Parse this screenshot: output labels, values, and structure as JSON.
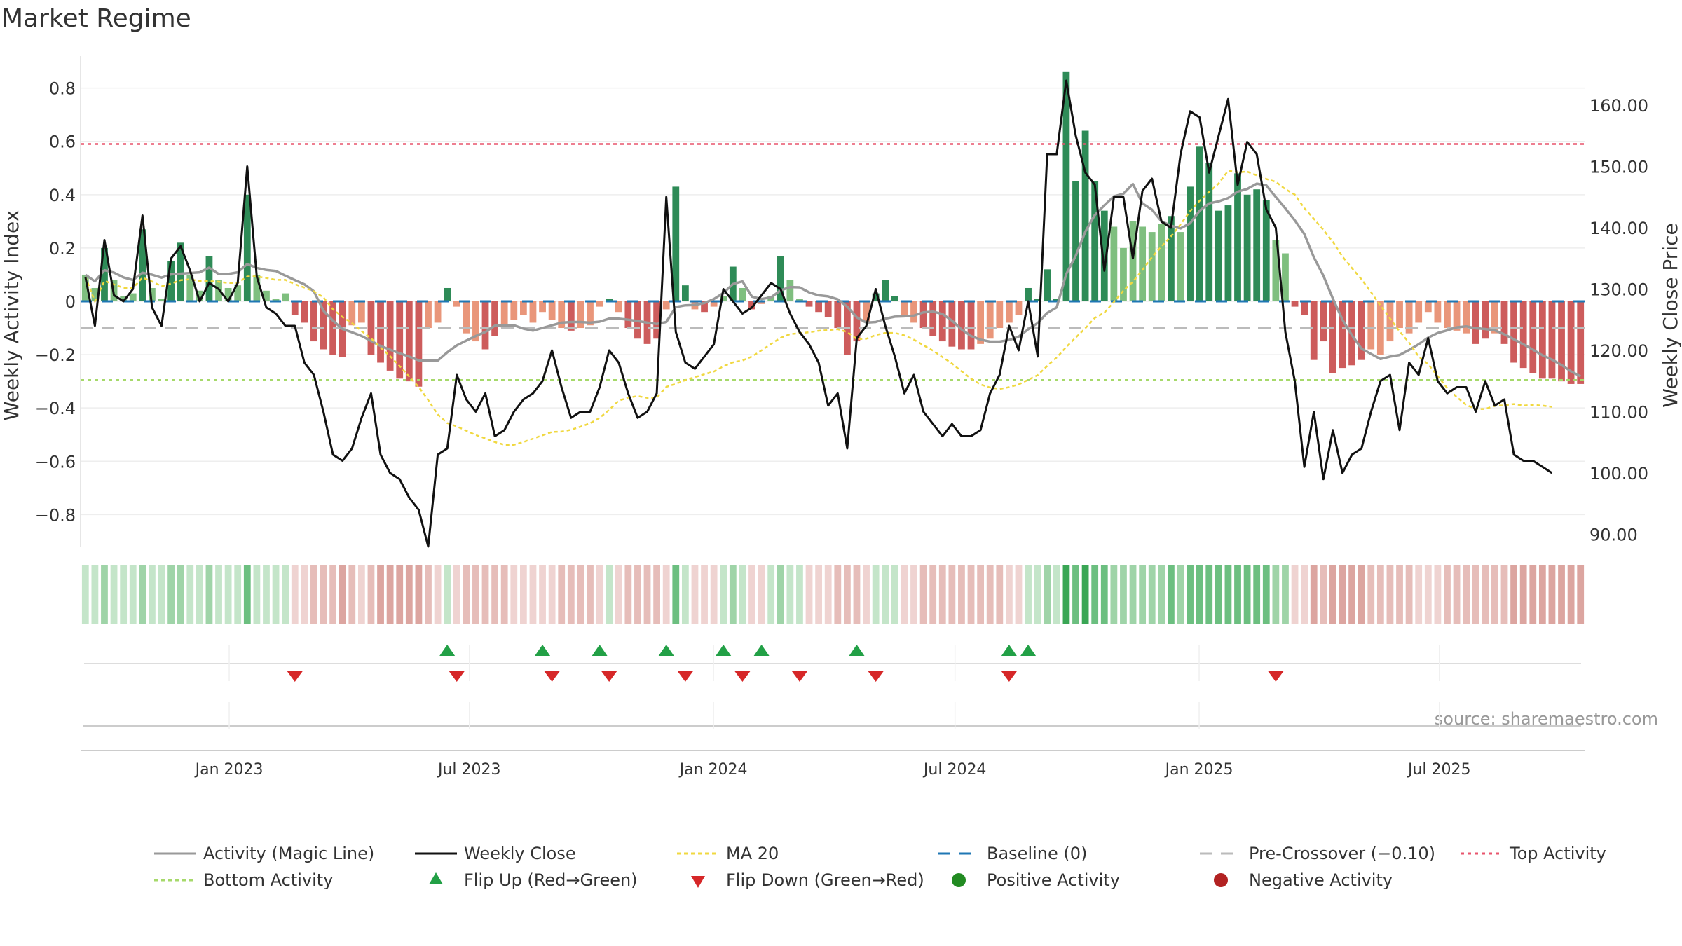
{
  "chart_data": {
    "type": "bar",
    "title": "Market Regime",
    "ylabel_left": "Weekly Activity Index",
    "ylabel_right": "Weekly Close Price",
    "left_ylim": [
      -0.92,
      0.92
    ],
    "right_ylim": [
      88,
      168
    ],
    "left_ticks": [
      0.8,
      0.6,
      0.4,
      0.2,
      0,
      -0.2,
      -0.4,
      -0.6,
      -0.8
    ],
    "left_tick_labels": [
      "0.8",
      "0.6",
      "0.4",
      "0.2",
      "0",
      "−0.2",
      "−0.4",
      "−0.6",
      "−0.8"
    ],
    "right_ticks": [
      160,
      150,
      140,
      130,
      120,
      110,
      100,
      90
    ],
    "right_tick_labels": [
      "160.00",
      "150.00",
      "140.00",
      "130.00",
      "120.00",
      "110.00",
      "100.00",
      "90.00"
    ],
    "x_start": "2022-09-11",
    "x_end": "2025-10-19",
    "date_ticks": [
      {
        "date": "2023-01-01",
        "label": "Jan 2023"
      },
      {
        "date": "2023-07-01",
        "label": "Jul 2023"
      },
      {
        "date": "2024-01-01",
        "label": "Jan 2024"
      },
      {
        "date": "2024-07-01",
        "label": "Jul 2024"
      },
      {
        "date": "2025-01-01",
        "label": "Jan 2025"
      },
      {
        "date": "2025-07-01",
        "label": "Jul 2025"
      }
    ],
    "reference_lines": {
      "baseline": 0,
      "pre_crossover": -0.1,
      "top_activity": 0.59,
      "bottom_activity": -0.295
    },
    "weeks": 158,
    "activity_keyframes": [
      [
        0,
        0.1
      ],
      [
        1,
        0.05
      ],
      [
        2,
        0.2
      ],
      [
        3,
        0.08
      ],
      [
        4,
        0.02
      ],
      [
        5,
        0.03
      ],
      [
        6,
        0.27
      ],
      [
        7,
        0.05
      ],
      [
        8,
        0.01
      ],
      [
        9,
        0.15
      ],
      [
        10,
        0.22
      ],
      [
        11,
        0.1
      ],
      [
        12,
        0.04
      ],
      [
        13,
        0.17
      ],
      [
        14,
        0.08
      ],
      [
        15,
        0.05
      ],
      [
        16,
        0.06
      ],
      [
        17,
        0.4
      ],
      [
        18,
        0.1
      ],
      [
        19,
        0.04
      ],
      [
        20,
        0.01
      ],
      [
        21,
        0.03
      ],
      [
        22,
        -0.05
      ],
      [
        23,
        -0.08
      ],
      [
        24,
        -0.15
      ],
      [
        25,
        -0.18
      ],
      [
        26,
        -0.2
      ],
      [
        27,
        -0.21
      ],
      [
        28,
        -0.09
      ],
      [
        29,
        -0.08
      ],
      [
        30,
        -0.2
      ],
      [
        31,
        -0.23
      ],
      [
        32,
        -0.26
      ],
      [
        33,
        -0.29
      ],
      [
        34,
        -0.3
      ],
      [
        35,
        -0.32
      ],
      [
        36,
        -0.1
      ],
      [
        37,
        -0.08
      ],
      [
        38,
        0.05
      ],
      [
        39,
        -0.02
      ],
      [
        40,
        -0.12
      ],
      [
        41,
        -0.15
      ],
      [
        42,
        -0.18
      ],
      [
        43,
        -0.13
      ],
      [
        44,
        -0.1
      ],
      [
        45,
        -0.07
      ],
      [
        46,
        -0.05
      ],
      [
        47,
        -0.08
      ],
      [
        48,
        -0.04
      ],
      [
        49,
        -0.07
      ],
      [
        50,
        -0.1
      ],
      [
        51,
        -0.11
      ],
      [
        52,
        -0.1
      ],
      [
        53,
        -0.09
      ],
      [
        54,
        -0.02
      ],
      [
        55,
        0.01
      ],
      [
        56,
        -0.04
      ],
      [
        57,
        -0.1
      ],
      [
        58,
        -0.14
      ],
      [
        59,
        -0.16
      ],
      [
        60,
        -0.14
      ],
      [
        61,
        -0.03
      ],
      [
        62,
        0.43
      ],
      [
        63,
        0.06
      ],
      [
        64,
        -0.03
      ],
      [
        65,
        -0.04
      ],
      [
        66,
        -0.02
      ],
      [
        67,
        0.02
      ],
      [
        68,
        0.13
      ],
      [
        69,
        0.05
      ],
      [
        70,
        -0.03
      ],
      [
        71,
        -0.01
      ],
      [
        72,
        0.02
      ],
      [
        73,
        0.17
      ],
      [
        74,
        0.08
      ],
      [
        75,
        0.01
      ],
      [
        76,
        -0.02
      ],
      [
        77,
        -0.04
      ],
      [
        78,
        -0.06
      ],
      [
        79,
        -0.1
      ],
      [
        80,
        -0.2
      ],
      [
        81,
        -0.15
      ],
      [
        82,
        -0.08
      ],
      [
        83,
        0.03
      ],
      [
        84,
        0.08
      ],
      [
        85,
        0.02
      ],
      [
        86,
        -0.05
      ],
      [
        87,
        -0.08
      ],
      [
        88,
        -0.1
      ],
      [
        89,
        -0.13
      ],
      [
        90,
        -0.15
      ],
      [
        91,
        -0.17
      ],
      [
        92,
        -0.18
      ],
      [
        93,
        -0.18
      ],
      [
        94,
        -0.16
      ],
      [
        95,
        -0.14
      ],
      [
        96,
        -0.1
      ],
      [
        97,
        -0.08
      ],
      [
        98,
        -0.05
      ],
      [
        99,
        0.05
      ],
      [
        100,
        0.01
      ],
      [
        101,
        0.12
      ],
      [
        102,
        0.01
      ],
      [
        103,
        0.86
      ],
      [
        104,
        0.45
      ],
      [
        105,
        0.64
      ],
      [
        106,
        0.45
      ],
      [
        107,
        0.34
      ],
      [
        108,
        0.28
      ],
      [
        109,
        0.2
      ],
      [
        110,
        0.3
      ],
      [
        111,
        0.28
      ],
      [
        112,
        0.26
      ],
      [
        113,
        0.29
      ],
      [
        114,
        0.32
      ],
      [
        115,
        0.26
      ],
      [
        116,
        0.43
      ],
      [
        117,
        0.58
      ],
      [
        118,
        0.52
      ],
      [
        119,
        0.34
      ],
      [
        120,
        0.36
      ],
      [
        121,
        0.48
      ],
      [
        122,
        0.4
      ],
      [
        123,
        0.42
      ],
      [
        124,
        0.38
      ],
      [
        125,
        0.23
      ],
      [
        126,
        0.18
      ],
      [
        127,
        -0.02
      ],
      [
        128,
        -0.05
      ],
      [
        129,
        -0.22
      ],
      [
        130,
        -0.15
      ],
      [
        131,
        -0.27
      ],
      [
        132,
        -0.25
      ],
      [
        133,
        -0.24
      ],
      [
        134,
        -0.22
      ],
      [
        135,
        -0.18
      ],
      [
        136,
        -0.2
      ],
      [
        137,
        -0.15
      ],
      [
        138,
        -0.1
      ],
      [
        139,
        -0.12
      ],
      [
        140,
        -0.08
      ],
      [
        141,
        -0.04
      ],
      [
        142,
        -0.08
      ],
      [
        143,
        -0.1
      ],
      [
        144,
        -0.11
      ],
      [
        145,
        -0.12
      ],
      [
        146,
        -0.16
      ],
      [
        147,
        -0.14
      ],
      [
        148,
        -0.12
      ],
      [
        149,
        -0.16
      ],
      [
        150,
        -0.23
      ],
      [
        151,
        -0.25
      ],
      [
        152,
        -0.27
      ],
      [
        153,
        -0.29
      ],
      [
        154,
        -0.29
      ],
      [
        155,
        -0.3
      ],
      [
        156,
        -0.31
      ],
      [
        157,
        -0.31
      ]
    ],
    "close_keyframes": [
      [
        0,
        132
      ],
      [
        1,
        124
      ],
      [
        2,
        138
      ],
      [
        3,
        129
      ],
      [
        4,
        128
      ],
      [
        5,
        130
      ],
      [
        6,
        142
      ],
      [
        7,
        127
      ],
      [
        8,
        124
      ],
      [
        9,
        135
      ],
      [
        10,
        137
      ],
      [
        11,
        133
      ],
      [
        12,
        128
      ],
      [
        13,
        131
      ],
      [
        14,
        130
      ],
      [
        15,
        128
      ],
      [
        16,
        131
      ],
      [
        17,
        150
      ],
      [
        18,
        132
      ],
      [
        19,
        127
      ],
      [
        20,
        126
      ],
      [
        21,
        124
      ],
      [
        22,
        124
      ],
      [
        23,
        118
      ],
      [
        24,
        116
      ],
      [
        25,
        110
      ],
      [
        26,
        103
      ],
      [
        27,
        102
      ],
      [
        28,
        104
      ],
      [
        29,
        109
      ],
      [
        30,
        113
      ],
      [
        31,
        103
      ],
      [
        32,
        100
      ],
      [
        33,
        99
      ],
      [
        34,
        96
      ],
      [
        35,
        94
      ],
      [
        36,
        88
      ],
      [
        37,
        103
      ],
      [
        38,
        104
      ],
      [
        39,
        116
      ],
      [
        40,
        112
      ],
      [
        41,
        110
      ],
      [
        42,
        113
      ],
      [
        43,
        106
      ],
      [
        44,
        107
      ],
      [
        45,
        110
      ],
      [
        46,
        112
      ],
      [
        47,
        113
      ],
      [
        48,
        115
      ],
      [
        49,
        120
      ],
      [
        50,
        114
      ],
      [
        51,
        109
      ],
      [
        52,
        110
      ],
      [
        53,
        110
      ],
      [
        54,
        114
      ],
      [
        55,
        120
      ],
      [
        56,
        118
      ],
      [
        57,
        113
      ],
      [
        58,
        109
      ],
      [
        59,
        110
      ],
      [
        60,
        113
      ],
      [
        61,
        145
      ],
      [
        62,
        123
      ],
      [
        63,
        118
      ],
      [
        64,
        117
      ],
      [
        65,
        119
      ],
      [
        66,
        121
      ],
      [
        67,
        130
      ],
      [
        68,
        128
      ],
      [
        69,
        126
      ],
      [
        70,
        127
      ],
      [
        71,
        129
      ],
      [
        72,
        131
      ],
      [
        73,
        130
      ],
      [
        74,
        126
      ],
      [
        75,
        123
      ],
      [
        76,
        121
      ],
      [
        77,
        118
      ],
      [
        78,
        111
      ],
      [
        79,
        113
      ],
      [
        80,
        104
      ],
      [
        81,
        122
      ],
      [
        82,
        124
      ],
      [
        83,
        130
      ],
      [
        84,
        124
      ],
      [
        85,
        119
      ],
      [
        86,
        113
      ],
      [
        87,
        116
      ],
      [
        88,
        110
      ],
      [
        89,
        108
      ],
      [
        90,
        106
      ],
      [
        91,
        108
      ],
      [
        92,
        106
      ],
      [
        93,
        106
      ],
      [
        94,
        107
      ],
      [
        95,
        113
      ],
      [
        96,
        116
      ],
      [
        97,
        124
      ],
      [
        98,
        120
      ],
      [
        99,
        128
      ],
      [
        100,
        119
      ],
      [
        101,
        152
      ],
      [
        102,
        152
      ],
      [
        103,
        164
      ],
      [
        104,
        155
      ],
      [
        105,
        149
      ],
      [
        106,
        147
      ],
      [
        107,
        133
      ],
      [
        108,
        145
      ],
      [
        109,
        145
      ],
      [
        110,
        135
      ],
      [
        111,
        146
      ],
      [
        112,
        148
      ],
      [
        113,
        141
      ],
      [
        114,
        140
      ],
      [
        115,
        152
      ],
      [
        116,
        159
      ],
      [
        117,
        158
      ],
      [
        118,
        149
      ],
      [
        119,
        155
      ],
      [
        120,
        161
      ],
      [
        121,
        147
      ],
      [
        122,
        154
      ],
      [
        123,
        152
      ],
      [
        124,
        143
      ],
      [
        125,
        140
      ],
      [
        126,
        123
      ],
      [
        127,
        115
      ],
      [
        128,
        101
      ],
      [
        129,
        110
      ],
      [
        130,
        99
      ],
      [
        131,
        107
      ],
      [
        132,
        100
      ],
      [
        133,
        103
      ],
      [
        134,
        104
      ],
      [
        135,
        110
      ],
      [
        136,
        115
      ],
      [
        137,
        116
      ],
      [
        138,
        107
      ],
      [
        139,
        118
      ],
      [
        140,
        116
      ],
      [
        141,
        122
      ],
      [
        142,
        115
      ],
      [
        143,
        113
      ],
      [
        144,
        114
      ],
      [
        145,
        114
      ],
      [
        146,
        110
      ],
      [
        147,
        115
      ],
      [
        148,
        111
      ],
      [
        149,
        112
      ],
      [
        150,
        103
      ],
      [
        151,
        102
      ],
      [
        152,
        102
      ],
      [
        153,
        101
      ],
      [
        154,
        100
      ]
    ],
    "flip_up_weeks": [
      38,
      48,
      54,
      61,
      67,
      71,
      81,
      97,
      99
    ],
    "flip_down_weeks": [
      22,
      39,
      49,
      55,
      63,
      69,
      75,
      83,
      97,
      125
    ],
    "legend": [
      "Activity (Magic Line)",
      "Weekly Close",
      "MA 20",
      "Baseline (0)",
      "Pre-Crossover (−0.10)",
      "Top Activity",
      "Bottom Activity",
      "Flip Up (Red→Green)",
      "Flip Down (Green→Red)",
      "Positive Activity",
      "Negative Activity"
    ],
    "source_note": "source: sharemaestro.com"
  },
  "colors": {
    "pos_dark": "#2e8b57",
    "pos_light": "#7fbf7f",
    "neg_dark": "#cd5c5c",
    "neg_light": "#e9967a",
    "magic_line": "#999999",
    "close_line": "#111111",
    "ma20": "#f0d840",
    "baseline": "#1f77b4",
    "pre_crossover": "#bbbbbb",
    "top_activity": "#e8556d",
    "bottom_activity": "#a6d96a",
    "flip_up": "#22a046",
    "flip_down": "#d62728",
    "pos_dot": "#228b22",
    "neg_dot": "#b22222"
  }
}
